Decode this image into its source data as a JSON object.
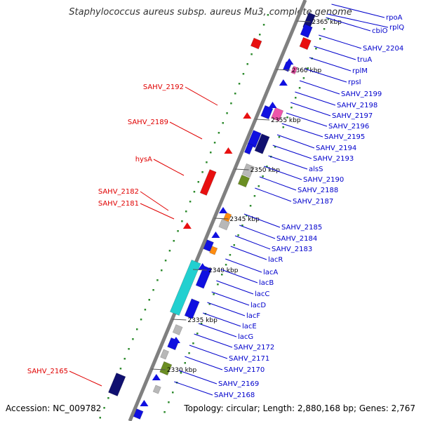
{
  "title": "Staphylococcus aureus subsp. aureus Mu3, complete genome",
  "footer": {
    "accession": "Accession: NC_009782",
    "topology": "Topology: circular; Length: 2,880,168 bp; Genes: 2,767"
  },
  "scale_labels": [
    "2365 kbp",
    "2360 kbp",
    "2355 kbp",
    "2350 kbp",
    "2345 kbp",
    "2340 kbp",
    "2335 kbp",
    "2330 kbp"
  ],
  "labels_left": [
    "SAHV_2192",
    "SAHV_2189",
    "hysA",
    "SAHV_2182",
    "SAHV_2181",
    "SAHV_2165"
  ],
  "labels_right": [
    "rpoA",
    "rplQ",
    "cbiO",
    "SAHV_2204",
    "truA",
    "rplM",
    "rpsI",
    "SAHV_2199",
    "SAHV_2198",
    "SAHV_2197",
    "SAHV_2196",
    "SAHV_2195",
    "SAHV_2194",
    "SAHV_2193",
    "alsS",
    "SAHV_2190",
    "SAHV_2188",
    "SAHV_2187",
    "SAHV_2185",
    "SAHV_2184",
    "SAHV_2183",
    "lacR",
    "lacA",
    "lacB",
    "lacC",
    "lacD",
    "lacF",
    "lacE",
    "lacG",
    "SAHV_2172",
    "SAHV_2171",
    "SAHV_2170",
    "SAHV_2169",
    "SAHV_2168"
  ],
  "colors": {
    "left_label": "#e00000",
    "right_label": "#0000cc",
    "backbone": "#808080",
    "tick": "#2e8b2e",
    "gene_blue": "#1010e0",
    "gene_red": "#e81010",
    "gene_cyan": "#22d0d0",
    "gene_navy": "#101070",
    "gene_pink": "#ee55aa",
    "gene_orange": "#ff8c10",
    "gene_olive": "#6b8e23",
    "gene_gray": "#b8b8b8"
  }
}
